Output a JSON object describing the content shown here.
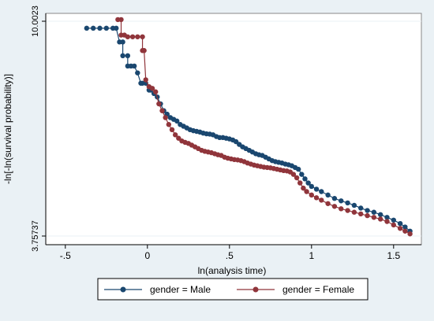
{
  "chart_data": {
    "type": "line",
    "xlabel": "ln(analysis time)",
    "ylabel": "-ln[-ln(survival probability)]",
    "xlim": [
      -0.6,
      1.65
    ],
    "ylim": [
      3.75737,
      10.0023
    ],
    "x_ticks": [
      -0.5,
      0,
      0.5,
      1,
      1.5
    ],
    "x_tick_labels": [
      "-.5",
      "0",
      ".5",
      "1",
      "1.5"
    ],
    "y_ticks": [
      3.75737,
      10.0023
    ],
    "y_tick_labels": [
      "3.75737",
      "10.0023"
    ],
    "grid": "y-horizontal",
    "legend_placement": "bottom",
    "series": [
      {
        "name": "gender = Male",
        "color": "#1a476f",
        "points": [
          [
            -0.37,
            9.8
          ],
          [
            -0.33,
            9.8
          ],
          [
            -0.29,
            9.8
          ],
          [
            -0.25,
            9.8
          ],
          [
            -0.21,
            9.8
          ],
          [
            -0.19,
            9.8
          ],
          [
            -0.17,
            9.4
          ],
          [
            -0.15,
            9.4
          ],
          [
            -0.15,
            9.0
          ],
          [
            -0.12,
            9.0
          ],
          [
            -0.12,
            8.7
          ],
          [
            -0.1,
            8.7
          ],
          [
            -0.08,
            8.7
          ],
          [
            -0.06,
            8.5
          ],
          [
            -0.04,
            8.2
          ],
          [
            -0.03,
            8.2
          ],
          [
            -0.01,
            8.2
          ],
          [
            0.01,
            8.0
          ],
          [
            0.02,
            8.0
          ],
          [
            0.04,
            7.9
          ],
          [
            0.06,
            7.8
          ],
          [
            0.08,
            7.6
          ],
          [
            0.1,
            7.4
          ],
          [
            0.12,
            7.3
          ],
          [
            0.14,
            7.2
          ],
          [
            0.16,
            7.15
          ],
          [
            0.18,
            7.1
          ],
          [
            0.2,
            7.0
          ],
          [
            0.22,
            6.95
          ],
          [
            0.24,
            6.9
          ],
          [
            0.26,
            6.85
          ],
          [
            0.28,
            6.82
          ],
          [
            0.3,
            6.8
          ],
          [
            0.32,
            6.78
          ],
          [
            0.34,
            6.75
          ],
          [
            0.36,
            6.73
          ],
          [
            0.38,
            6.72
          ],
          [
            0.4,
            6.7
          ],
          [
            0.42,
            6.65
          ],
          [
            0.44,
            6.62
          ],
          [
            0.46,
            6.62
          ],
          [
            0.48,
            6.6
          ],
          [
            0.5,
            6.58
          ],
          [
            0.52,
            6.55
          ],
          [
            0.54,
            6.5
          ],
          [
            0.56,
            6.42
          ],
          [
            0.58,
            6.35
          ],
          [
            0.6,
            6.3
          ],
          [
            0.62,
            6.25
          ],
          [
            0.64,
            6.2
          ],
          [
            0.66,
            6.15
          ],
          [
            0.68,
            6.12
          ],
          [
            0.7,
            6.1
          ],
          [
            0.72,
            6.05
          ],
          [
            0.74,
            6.0
          ],
          [
            0.76,
            5.95
          ],
          [
            0.78,
            5.92
          ],
          [
            0.8,
            5.9
          ],
          [
            0.82,
            5.88
          ],
          [
            0.84,
            5.85
          ],
          [
            0.86,
            5.83
          ],
          [
            0.88,
            5.8
          ],
          [
            0.9,
            5.75
          ],
          [
            0.92,
            5.7
          ],
          [
            0.94,
            5.55
          ],
          [
            0.96,
            5.42
          ],
          [
            0.98,
            5.3
          ],
          [
            1.0,
            5.2
          ],
          [
            1.03,
            5.12
          ],
          [
            1.06,
            5.05
          ],
          [
            1.1,
            4.95
          ],
          [
            1.14,
            4.85
          ],
          [
            1.18,
            4.78
          ],
          [
            1.22,
            4.72
          ],
          [
            1.26,
            4.65
          ],
          [
            1.3,
            4.57
          ],
          [
            1.34,
            4.5
          ],
          [
            1.38,
            4.45
          ],
          [
            1.42,
            4.38
          ],
          [
            1.46,
            4.3
          ],
          [
            1.5,
            4.22
          ],
          [
            1.54,
            4.12
          ],
          [
            1.57,
            4.02
          ],
          [
            1.6,
            3.9
          ]
        ]
      },
      {
        "name": "gender = Female",
        "color": "#90353b",
        "points": [
          [
            -0.18,
            10.05
          ],
          [
            -0.16,
            10.05
          ],
          [
            -0.16,
            9.6
          ],
          [
            -0.14,
            9.6
          ],
          [
            -0.12,
            9.55
          ],
          [
            -0.09,
            9.55
          ],
          [
            -0.06,
            9.55
          ],
          [
            -0.03,
            9.55
          ],
          [
            -0.03,
            9.15
          ],
          [
            -0.02,
            9.15
          ],
          [
            -0.01,
            8.3
          ],
          [
            0.01,
            8.1
          ],
          [
            0.03,
            8.05
          ],
          [
            0.05,
            7.95
          ],
          [
            0.07,
            7.6
          ],
          [
            0.09,
            7.4
          ],
          [
            0.11,
            7.2
          ],
          [
            0.13,
            7.0
          ],
          [
            0.15,
            6.85
          ],
          [
            0.17,
            6.7
          ],
          [
            0.19,
            6.6
          ],
          [
            0.21,
            6.52
          ],
          [
            0.23,
            6.48
          ],
          [
            0.25,
            6.45
          ],
          [
            0.27,
            6.4
          ],
          [
            0.29,
            6.35
          ],
          [
            0.31,
            6.3
          ],
          [
            0.33,
            6.25
          ],
          [
            0.35,
            6.22
          ],
          [
            0.37,
            6.2
          ],
          [
            0.39,
            6.18
          ],
          [
            0.41,
            6.15
          ],
          [
            0.43,
            6.12
          ],
          [
            0.45,
            6.1
          ],
          [
            0.47,
            6.05
          ],
          [
            0.49,
            6.02
          ],
          [
            0.51,
            6.0
          ],
          [
            0.53,
            5.98
          ],
          [
            0.55,
            5.97
          ],
          [
            0.57,
            5.95
          ],
          [
            0.59,
            5.92
          ],
          [
            0.61,
            5.88
          ],
          [
            0.63,
            5.85
          ],
          [
            0.65,
            5.82
          ],
          [
            0.67,
            5.8
          ],
          [
            0.69,
            5.78
          ],
          [
            0.71,
            5.76
          ],
          [
            0.73,
            5.75
          ],
          [
            0.75,
            5.74
          ],
          [
            0.77,
            5.72
          ],
          [
            0.79,
            5.7
          ],
          [
            0.81,
            5.68
          ],
          [
            0.83,
            5.66
          ],
          [
            0.85,
            5.65
          ],
          [
            0.87,
            5.62
          ],
          [
            0.89,
            5.55
          ],
          [
            0.91,
            5.45
          ],
          [
            0.93,
            5.3
          ],
          [
            0.95,
            5.15
          ],
          [
            0.97,
            5.05
          ],
          [
            1.0,
            4.95
          ],
          [
            1.03,
            4.87
          ],
          [
            1.06,
            4.8
          ],
          [
            1.1,
            4.7
          ],
          [
            1.14,
            4.62
          ],
          [
            1.18,
            4.55
          ],
          [
            1.22,
            4.5
          ],
          [
            1.26,
            4.45
          ],
          [
            1.3,
            4.4
          ],
          [
            1.34,
            4.35
          ],
          [
            1.38,
            4.3
          ],
          [
            1.42,
            4.25
          ],
          [
            1.46,
            4.18
          ],
          [
            1.5,
            4.08
          ],
          [
            1.54,
            3.98
          ],
          [
            1.57,
            3.9
          ],
          [
            1.6,
            3.82
          ]
        ]
      }
    ]
  }
}
